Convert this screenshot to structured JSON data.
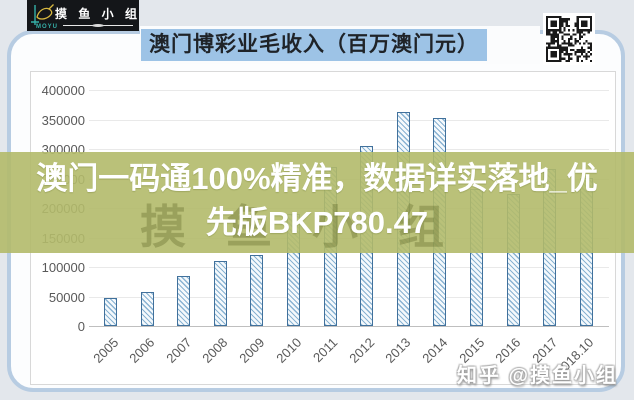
{
  "logo": {
    "brand_cn": "摸 鱼 小 组",
    "brand_en": "MOYU"
  },
  "header": {
    "title": "澳门博彩业毛收入（百万澳门元）",
    "title_highlight_color": "#9dc3e6"
  },
  "overlay": {
    "line1": "澳门一码通100%精准，数据详实落地_优",
    "line2": "先版BKP780.47",
    "band_color": "#b2ba6a",
    "text_color": "#ffffff"
  },
  "watermarks": {
    "chart_center": "摸鱼小组",
    "bottom_right": "知乎 @摸鱼小组"
  },
  "icons": {
    "logo_fish": "fish-icon",
    "qr": "qr-code"
  },
  "chart_data": {
    "type": "bar",
    "title": "澳门博彩业毛收入（百万澳门元）",
    "xlabel": "",
    "ylabel": "",
    "categories": [
      "2005",
      "2006",
      "2007",
      "2008",
      "2009",
      "2010",
      "2011",
      "2012",
      "2013",
      "2014",
      "2015",
      "2016",
      "2017",
      "2018.10"
    ],
    "values": [
      47000,
      57500,
      84000,
      110000,
      120400,
      189600,
      269100,
      305200,
      361900,
      352700,
      231800,
      223200,
      266100,
      251500
    ],
    "ylim": [
      0,
      400000
    ],
    "yticks": [
      0,
      50000,
      100000,
      150000,
      200000,
      250000,
      300000,
      350000,
      400000
    ],
    "grid": true,
    "legend": false,
    "bar_border_color": "#41719c",
    "bar_hatch_color": "#9dc3e0"
  }
}
